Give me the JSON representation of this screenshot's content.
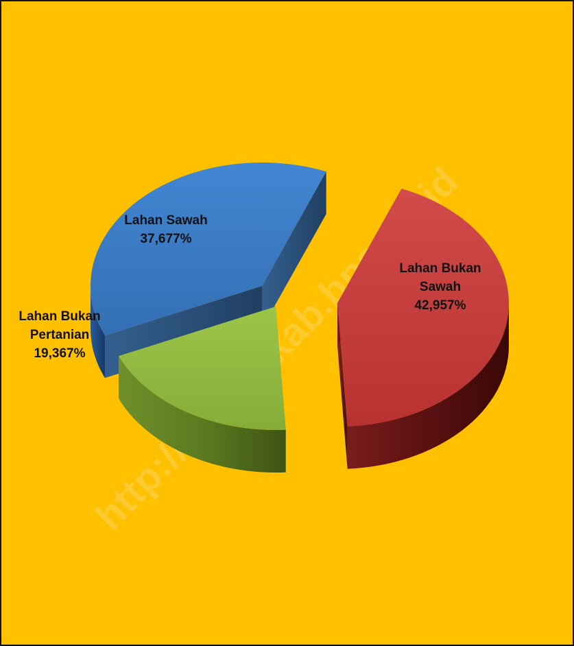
{
  "colors": {
    "background": "#FFC000",
    "frame": "#111111"
  },
  "watermark": "http://kendalkab.bps.go.id",
  "chart_data": {
    "type": "pie",
    "title": "",
    "categories": [
      "Lahan Bukan Sawah",
      "Lahan Bukan Pertanian",
      "Lahan Sawah"
    ],
    "values": [
      42.957,
      19.367,
      37.677
    ],
    "labels": [
      [
        "Lahan Bukan",
        "Sawah",
        "42,957%"
      ],
      [
        "Lahan Bukan",
        "Pertanian",
        "19,367%"
      ],
      [
        "Lahan Sawah",
        "37,677%"
      ]
    ],
    "colors": [
      "#C0393A",
      "#8DB23A",
      "#3A78C2"
    ],
    "style": "3d-exploded",
    "legend": "none"
  }
}
